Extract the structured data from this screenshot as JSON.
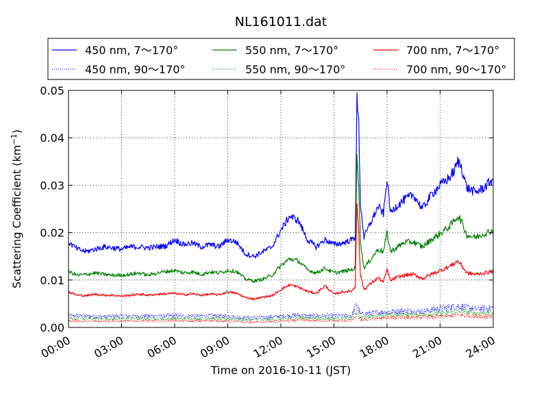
{
  "chart_data": {
    "type": "line",
    "title": "NL161011.dat",
    "xlabel": "Time on 2016-10-11 (JST)",
    "ylabel_main": "Scattering Coefficient (km",
    "ylabel_sup": "−1",
    "ylabel_close": ")",
    "xlim": [
      0,
      24
    ],
    "ylim": [
      0,
      0.05
    ],
    "x_tick_values": [
      0,
      3,
      6,
      9,
      12,
      15,
      18,
      21,
      24
    ],
    "x_tick_labels": [
      "00:00",
      "03:00",
      "06:00",
      "09:00",
      "12:00",
      "15:00",
      "18:00",
      "21:00",
      "24:00"
    ],
    "y_tick_values": [
      0,
      0.01,
      0.02,
      0.03,
      0.04,
      0.05
    ],
    "y_tick_labels": [
      "0.00",
      "0.01",
      "0.02",
      "0.03",
      "0.04",
      "0.05"
    ],
    "grid": true,
    "legend_position": "top",
    "series": [
      {
        "name": "450 nm, 7～170°",
        "color": "#0000ff",
        "style": "solid",
        "x": [
          0,
          0.5,
          1,
          1.5,
          2,
          2.5,
          3,
          3.5,
          4,
          4.5,
          5,
          5.5,
          6,
          6.5,
          7,
          7.5,
          8,
          8.5,
          9,
          9.5,
          10,
          10.5,
          11,
          11.5,
          12,
          12.5,
          13,
          13.5,
          14,
          14.5,
          15,
          15.5,
          16,
          16.2,
          16.3,
          16.4,
          16.5,
          16.7,
          17,
          17.5,
          17.8,
          18,
          18.2,
          18.5,
          19,
          19.5,
          20,
          20.5,
          21,
          21.5,
          21.8,
          22,
          22.2,
          22.5,
          23,
          23.5,
          24
        ],
        "y": [
          0.018,
          0.0165,
          0.016,
          0.0165,
          0.017,
          0.0168,
          0.0165,
          0.017,
          0.017,
          0.0168,
          0.017,
          0.0172,
          0.0185,
          0.0175,
          0.0178,
          0.017,
          0.0175,
          0.017,
          0.0185,
          0.018,
          0.0155,
          0.015,
          0.016,
          0.017,
          0.0205,
          0.0235,
          0.0225,
          0.0185,
          0.017,
          0.0185,
          0.0175,
          0.0178,
          0.0185,
          0.019,
          0.048,
          0.043,
          0.026,
          0.019,
          0.0215,
          0.0255,
          0.024,
          0.0315,
          0.024,
          0.0255,
          0.027,
          0.028,
          0.025,
          0.028,
          0.03,
          0.0315,
          0.033,
          0.035,
          0.034,
          0.0295,
          0.0285,
          0.0295,
          0.0315
        ]
      },
      {
        "name": "550 nm, 7～170°",
        "color": "#008000",
        "style": "solid",
        "x": [
          0,
          0.5,
          1,
          1.5,
          2,
          2.5,
          3,
          3.5,
          4,
          4.5,
          5,
          5.5,
          6,
          6.5,
          7,
          7.5,
          8,
          8.5,
          9,
          9.5,
          10,
          10.5,
          11,
          11.5,
          12,
          12.5,
          13,
          13.5,
          14,
          14.5,
          15,
          15.5,
          16,
          16.2,
          16.3,
          16.4,
          16.5,
          16.7,
          17,
          17.5,
          17.8,
          18,
          18.2,
          18.5,
          19,
          19.5,
          20,
          20.5,
          21,
          21.5,
          21.8,
          22,
          22.2,
          22.5,
          23,
          23.5,
          24
        ],
        "y": [
          0.0118,
          0.011,
          0.0112,
          0.0115,
          0.0112,
          0.011,
          0.011,
          0.0112,
          0.0115,
          0.011,
          0.0115,
          0.0118,
          0.012,
          0.0115,
          0.0117,
          0.0112,
          0.0117,
          0.0115,
          0.012,
          0.0118,
          0.0102,
          0.0098,
          0.0102,
          0.011,
          0.013,
          0.0145,
          0.014,
          0.0122,
          0.0115,
          0.0125,
          0.0115,
          0.0118,
          0.0122,
          0.0125,
          0.037,
          0.03,
          0.018,
          0.0125,
          0.014,
          0.0165,
          0.016,
          0.02,
          0.016,
          0.0167,
          0.018,
          0.018,
          0.017,
          0.0185,
          0.0198,
          0.0212,
          0.0225,
          0.0235,
          0.0225,
          0.0195,
          0.019,
          0.0198,
          0.0205
        ]
      },
      {
        "name": "700 nm, 7～170°",
        "color": "#ff0000",
        "style": "solid",
        "x": [
          0,
          0.5,
          1,
          1.5,
          2,
          2.5,
          3,
          3.5,
          4,
          4.5,
          5,
          5.5,
          6,
          6.5,
          7,
          7.5,
          8,
          8.5,
          9,
          9.5,
          10,
          10.5,
          11,
          11.5,
          12,
          12.5,
          13,
          13.5,
          14,
          14.5,
          15,
          15.5,
          16,
          16.2,
          16.3,
          16.4,
          16.5,
          16.7,
          17,
          17.5,
          17.8,
          18,
          18.2,
          18.5,
          19,
          19.5,
          20,
          20.5,
          21,
          21.5,
          21.8,
          22,
          22.2,
          22.5,
          23,
          23.5,
          24
        ],
        "y": [
          0.0075,
          0.0068,
          0.0067,
          0.007,
          0.0068,
          0.0068,
          0.0066,
          0.0068,
          0.007,
          0.0068,
          0.007,
          0.0071,
          0.0072,
          0.0069,
          0.0071,
          0.0068,
          0.007,
          0.0069,
          0.0075,
          0.0072,
          0.0063,
          0.006,
          0.0064,
          0.0067,
          0.008,
          0.009,
          0.0085,
          0.0076,
          0.0072,
          0.0088,
          0.007,
          0.0075,
          0.0077,
          0.0085,
          0.027,
          0.02,
          0.011,
          0.008,
          0.009,
          0.0105,
          0.0095,
          0.0123,
          0.0098,
          0.0105,
          0.011,
          0.0112,
          0.0103,
          0.0112,
          0.012,
          0.0128,
          0.0135,
          0.014,
          0.0132,
          0.0115,
          0.0112,
          0.0115,
          0.0118
        ]
      },
      {
        "name": "450 nm, 90～170°",
        "color": "#0000ff",
        "style": "dotted",
        "x": [
          0,
          1,
          2,
          3,
          4,
          5,
          6,
          7,
          8,
          9,
          10,
          11,
          12,
          13,
          14,
          15,
          16,
          16.3,
          16.5,
          17,
          18,
          19,
          20,
          21,
          22,
          23,
          24
        ],
        "y": [
          0.0025,
          0.0024,
          0.0023,
          0.0024,
          0.0024,
          0.0024,
          0.0025,
          0.0024,
          0.0025,
          0.0024,
          0.0021,
          0.0021,
          0.0024,
          0.0026,
          0.0024,
          0.0025,
          0.0025,
          0.005,
          0.0028,
          0.003,
          0.0033,
          0.0035,
          0.0034,
          0.004,
          0.0045,
          0.0039,
          0.0042
        ]
      },
      {
        "name": "550 nm, 90～170°",
        "color": "#008000",
        "style": "dotted",
        "x": [
          0,
          1,
          2,
          3,
          4,
          5,
          6,
          7,
          8,
          9,
          10,
          11,
          12,
          13,
          14,
          15,
          16,
          16.3,
          16.5,
          17,
          18,
          19,
          20,
          21,
          22,
          23,
          24
        ],
        "y": [
          0.0019,
          0.0018,
          0.0018,
          0.0018,
          0.0019,
          0.0018,
          0.0019,
          0.0018,
          0.0019,
          0.0018,
          0.0016,
          0.0016,
          0.0018,
          0.002,
          0.0019,
          0.0019,
          0.0019,
          0.0035,
          0.002,
          0.0023,
          0.0026,
          0.0027,
          0.0027,
          0.003,
          0.0034,
          0.003,
          0.0032
        ]
      },
      {
        "name": "700 nm, 90～170°",
        "color": "#ff0000",
        "style": "dotted",
        "x": [
          0,
          1,
          2,
          3,
          4,
          5,
          6,
          7,
          8,
          9,
          10,
          11,
          12,
          13,
          14,
          15,
          16,
          16.3,
          16.5,
          17,
          18,
          19,
          20,
          21,
          22,
          23,
          24
        ],
        "y": [
          0.0014,
          0.0013,
          0.0013,
          0.0013,
          0.0014,
          0.0013,
          0.0014,
          0.0013,
          0.0014,
          0.0013,
          0.0011,
          0.0011,
          0.0013,
          0.0015,
          0.0014,
          0.0014,
          0.0014,
          0.0026,
          0.0015,
          0.0017,
          0.002,
          0.0021,
          0.0021,
          0.0023,
          0.0026,
          0.0023,
          0.0024
        ]
      }
    ],
    "legend_order": [
      0,
      1,
      2,
      3,
      4,
      5
    ]
  }
}
